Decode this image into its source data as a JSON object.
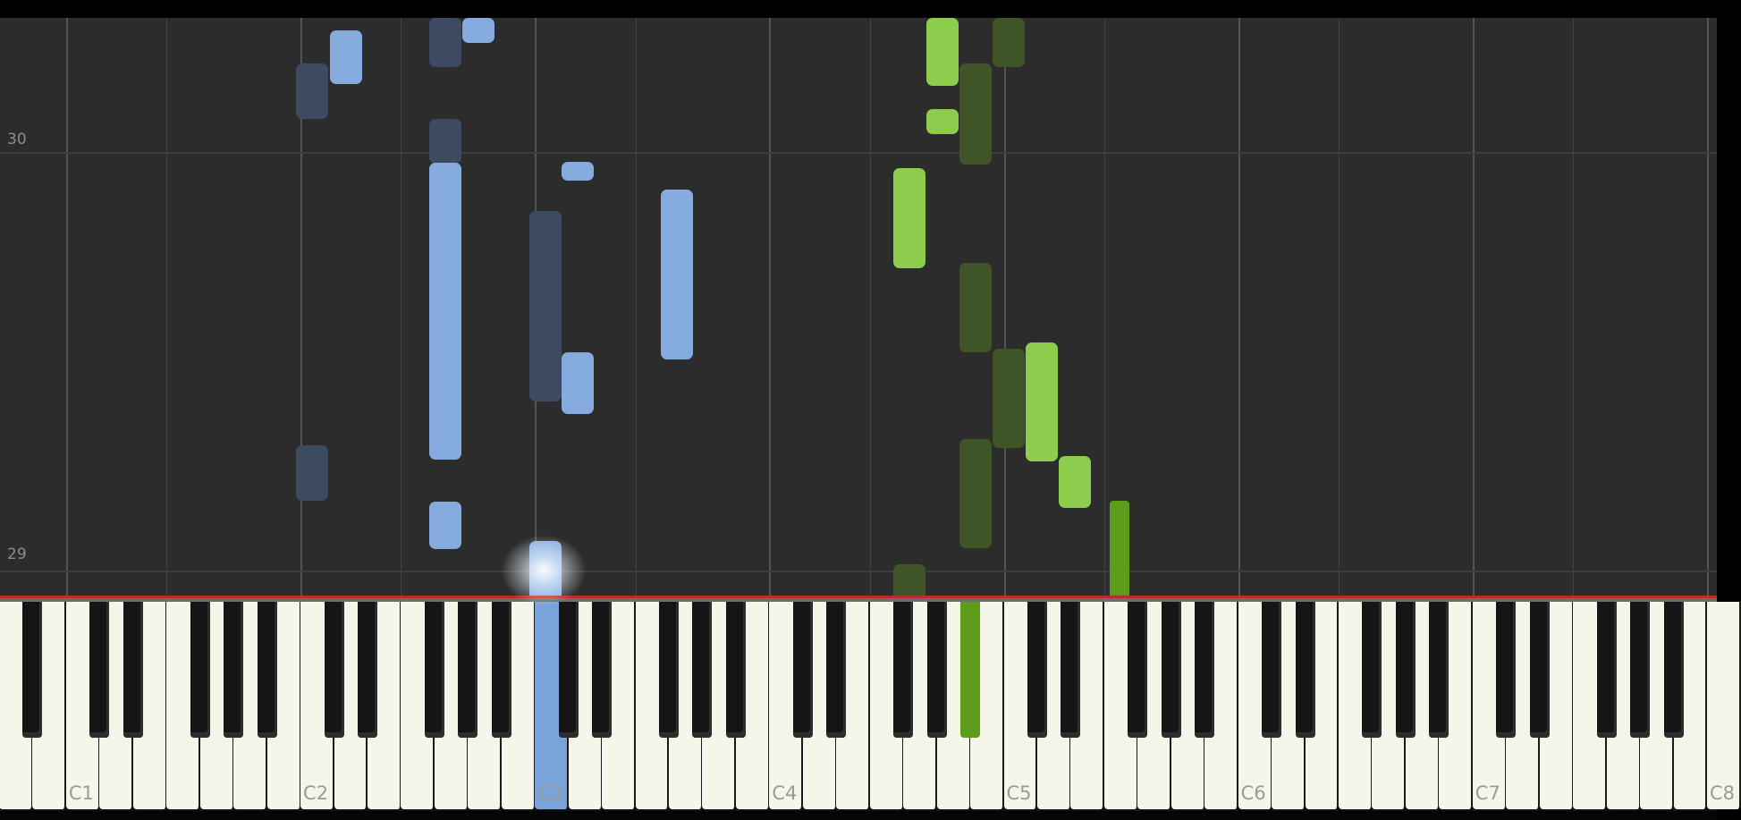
{
  "measures": [
    "30",
    "29"
  ],
  "key_labels": [
    "C1",
    "C2",
    "C3",
    "C4",
    "C5",
    "C6",
    "C7",
    "C8"
  ],
  "colors": {
    "background": "#2c2c2c",
    "left_hand_active": "#86acdf",
    "left_hand_dim": "#3c4a62",
    "right_hand_active": "#8ecc4e",
    "right_hand_dim": "#3f5528",
    "right_hand_pressed": "#5d9b1a",
    "left_hand_pressed": "#7aa4d9",
    "hit_line": "#b92c2c",
    "white_key": "#f6f5ea",
    "black_key": "#151515"
  },
  "pressed_keys": [
    "C3",
    "A#4"
  ]
}
